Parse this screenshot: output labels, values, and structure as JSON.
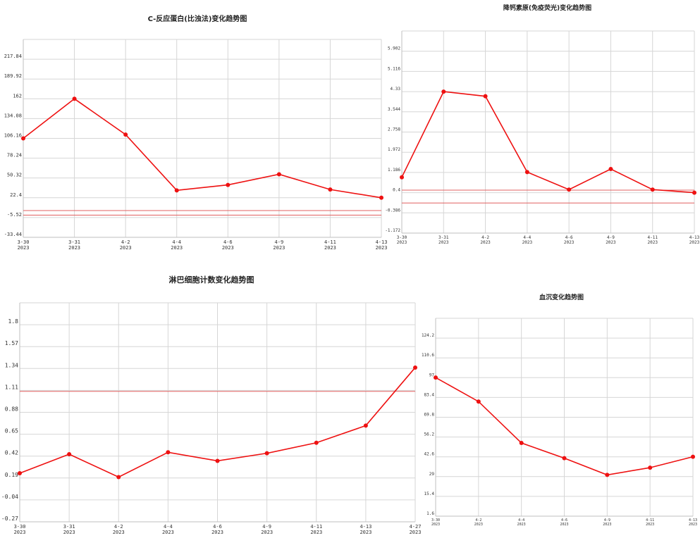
{
  "chart_data": [
    {
      "type": "line",
      "title": "C-反应蛋白(比浊法)变化趋势图",
      "categories": [
        "3-30\n2023",
        "3-31\n2023",
        "4-2\n2023",
        "4-4\n2023",
        "4-6\n2023",
        "4-9\n2023",
        "4-11\n2023",
        "4-13\n2023"
      ],
      "y_ticks": [
        "-33.44",
        "-5.52",
        "22.4",
        "50.32",
        "78.24",
        "106.16",
        "134.08",
        "162",
        "189.92",
        "217.84"
      ],
      "ylim": [
        -33.44,
        245.76
      ],
      "series": [
        {
          "values": [
            106.16,
            162,
            111.5,
            32.8,
            40.5,
            55.5,
            34,
            22.4
          ]
        }
      ],
      "reference_lines": [
        4.3,
        -2.2
      ],
      "grid": true,
      "colors": {
        "line": "#ee1111",
        "reference": "#e06060",
        "grid": "#d6d6d6"
      }
    },
    {
      "type": "line",
      "title": "降钙素原(免疫荧光)变化趋势图",
      "categories": [
        "3-30\n2023",
        "3-31\n2023",
        "4-2\n2023",
        "4-4\n2023",
        "4-6\n2023",
        "4-9\n2023",
        "4-11\n2023",
        "4-13\n2023"
      ],
      "y_ticks": [
        "-1.172",
        "-0.386",
        "0.4",
        "1.186",
        "1.972",
        "2.758",
        "3.544",
        "4.33",
        "5.116",
        "5.902"
      ],
      "ylim": [
        -1.172,
        6.688
      ],
      "series": [
        {
          "values": [
            1.0,
            4.33,
            4.15,
            1.2,
            0.52,
            1.32,
            0.52,
            0.4
          ]
        }
      ],
      "reference_lines": [
        0.5,
        0.0
      ],
      "grid": true,
      "colors": {
        "line": "#ee1111",
        "reference": "#e06060",
        "grid": "#d6d6d6"
      }
    },
    {
      "type": "line",
      "title": "淋巴细胞计数变化趋势图",
      "categories": [
        "3-30\n2023",
        "3-31\n2023",
        "4-2\n2023",
        "4-4\n2023",
        "4-6\n2023",
        "4-9\n2023",
        "4-11\n2023",
        "4-13\n2023",
        "4-27\n2023"
      ],
      "y_ticks": [
        "-0.27",
        "-0.04",
        "0.19",
        "0.42",
        "0.65",
        "0.88",
        "1.11",
        "1.34",
        "1.57",
        "1.8"
      ],
      "ylim": [
        -0.27,
        2.03
      ],
      "series": [
        {
          "values": [
            0.24,
            0.44,
            0.2,
            0.46,
            0.37,
            0.45,
            0.56,
            0.74,
            1.35
          ]
        }
      ],
      "reference_lines": [
        1.1
      ],
      "grid": true,
      "colors": {
        "line": "#ee1111",
        "reference": "#e06060",
        "grid": "#d6d6d6"
      }
    },
    {
      "type": "line",
      "title": "血沉变化趋势图",
      "categories": [
        "3-30\n2023",
        "4-2\n2023",
        "4-4\n2023",
        "4-6\n2023",
        "4-9\n2023",
        "4-11\n2023",
        "4-13\n2023"
      ],
      "y_ticks": [
        "1.6",
        "15.4",
        "29",
        "42.6",
        "56.2",
        "69.8",
        "83.4",
        "97",
        "110.6",
        "124.2"
      ],
      "ylim": [
        1.6,
        137.8
      ],
      "series": [
        {
          "values": [
            97,
            80.5,
            52,
            41.5,
            30,
            35,
            42.5
          ]
        }
      ],
      "reference_lines": [],
      "grid": true,
      "colors": {
        "line": "#ee1111",
        "reference": "#e06060",
        "grid": "#d6d6d6"
      }
    }
  ]
}
